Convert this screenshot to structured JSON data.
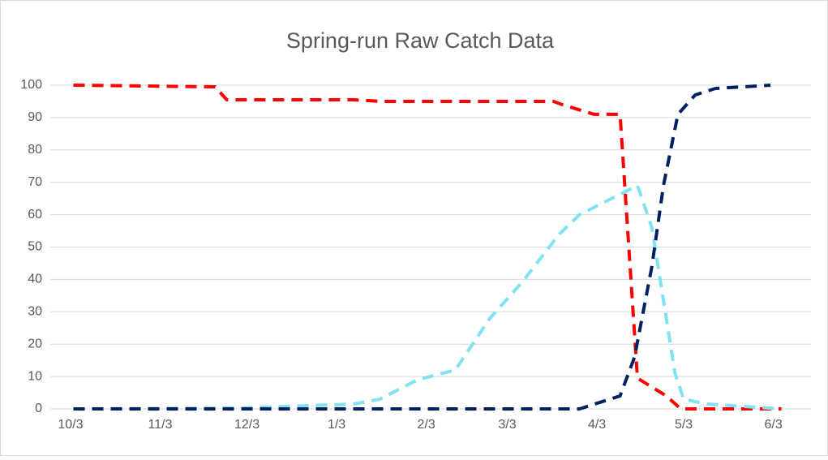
{
  "chart_data": {
    "type": "line",
    "title": "Spring-run Raw Catch Data",
    "xlim": [
      -7,
      256
    ],
    "xticks": [
      {
        "value": 0,
        "label": "10/3"
      },
      {
        "value": 31,
        "label": "11/3"
      },
      {
        "value": 61,
        "label": "12/3"
      },
      {
        "value": 92,
        "label": "1/3"
      },
      {
        "value": 123,
        "label": "2/3"
      },
      {
        "value": 151,
        "label": "3/3"
      },
      {
        "value": 182,
        "label": "4/3"
      },
      {
        "value": 212,
        "label": "5/3"
      },
      {
        "value": 243,
        "label": "6/3"
      }
    ],
    "ylim": [
      0,
      100
    ],
    "yticks": [
      0,
      10,
      20,
      30,
      40,
      50,
      60,
      70,
      80,
      90,
      100
    ],
    "grid": true,
    "series": [
      {
        "color": "#ff0000",
        "x": [
          1,
          50,
          54,
          98,
          107,
          167,
          170,
          181,
          190,
          196,
          206,
          211,
          246
        ],
        "values": [
          100,
          99.5,
          95.5,
          95.5,
          95,
          95,
          94,
          91,
          91,
          9.5,
          4,
          0,
          0
        ]
      },
      {
        "color": "#7fe3f2",
        "x": [
          1,
          60,
          98,
          107,
          120,
          133,
          145,
          156,
          169,
          176,
          196,
          201,
          209,
          212,
          220,
          246
        ],
        "values": [
          0,
          0.3,
          1.5,
          3,
          9,
          12,
          28,
          39,
          54,
          60,
          69,
          56,
          11,
          3,
          1.5,
          0
        ]
      },
      {
        "color": "#002060",
        "x": [
          1,
          176,
          190,
          195,
          201,
          205,
          210,
          216,
          223,
          242
        ],
        "values": [
          0,
          0,
          4,
          16,
          44,
          69,
          91,
          97,
          99,
          100
        ]
      }
    ]
  }
}
